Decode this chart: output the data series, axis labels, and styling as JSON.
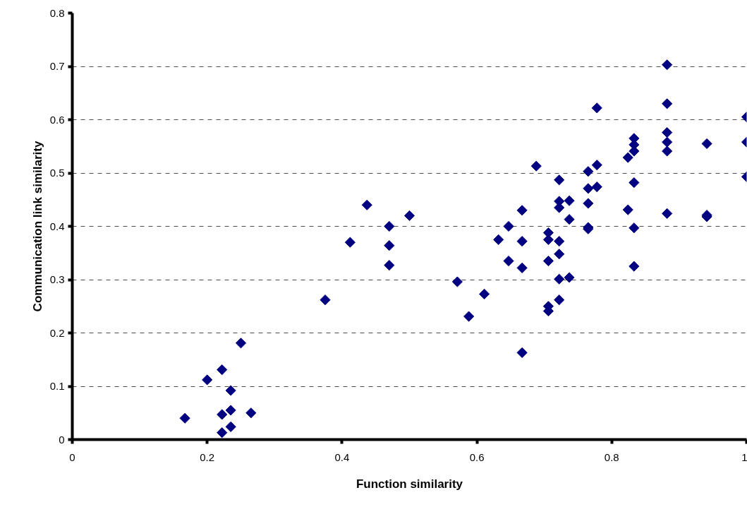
{
  "chart_data": {
    "type": "scatter",
    "xlabel": "Function similarity",
    "ylabel": "Communication link similarity",
    "xlim": [
      0,
      1
    ],
    "ylim": [
      0,
      0.8
    ],
    "xticks": [
      0,
      0.2,
      0.4,
      0.6,
      0.8,
      1
    ],
    "yticks": [
      0,
      0.1,
      0.2,
      0.3,
      0.4,
      0.5,
      0.6,
      0.7,
      0.8
    ],
    "grid": "y",
    "marker": "diamond",
    "series": [
      {
        "color": "#000080",
        "x": [
          0.167,
          0.2,
          0.222,
          0.25,
          0.235,
          0.222,
          0.235,
          0.235,
          0.222,
          0.265,
          0.375,
          0.412,
          0.437,
          0.47,
          0.47,
          0.47,
          0.5,
          0.571,
          0.588,
          0.611,
          0.632,
          0.647,
          0.647,
          0.667,
          0.667,
          0.667,
          0.667,
          0.688,
          0.706,
          0.706,
          0.706,
          0.706,
          0.706,
          0.722,
          0.722,
          0.722,
          0.722,
          0.722,
          0.722,
          0.722,
          0.737,
          0.737,
          0.737,
          0.765,
          0.765,
          0.765,
          0.765,
          0.765,
          0.778,
          0.778,
          0.778,
          0.824,
          0.824,
          0.833,
          0.833,
          0.833,
          0.833,
          0.833,
          0.833,
          0.882,
          0.882,
          0.882,
          0.882,
          0.882,
          0.882,
          0.941,
          0.941,
          0.941,
          1.0,
          1.0,
          1.0
        ],
        "values": [
          0.04,
          0.112,
          0.131,
          0.181,
          0.092,
          0.047,
          0.055,
          0.024,
          0.013,
          0.05,
          0.262,
          0.37,
          0.44,
          0.4,
          0.364,
          0.327,
          0.42,
          0.296,
          0.231,
          0.273,
          0.375,
          0.4,
          0.335,
          0.43,
          0.372,
          0.322,
          0.163,
          0.513,
          0.388,
          0.375,
          0.335,
          0.25,
          0.241,
          0.487,
          0.447,
          0.435,
          0.372,
          0.348,
          0.301,
          0.262,
          0.448,
          0.413,
          0.304,
          0.503,
          0.471,
          0.443,
          0.398,
          0.395,
          0.622,
          0.515,
          0.474,
          0.529,
          0.431,
          0.565,
          0.553,
          0.541,
          0.482,
          0.397,
          0.325,
          0.703,
          0.63,
          0.576,
          0.558,
          0.541,
          0.424,
          0.555,
          0.421,
          0.418,
          0.605,
          0.558,
          0.493
        ]
      }
    ]
  }
}
